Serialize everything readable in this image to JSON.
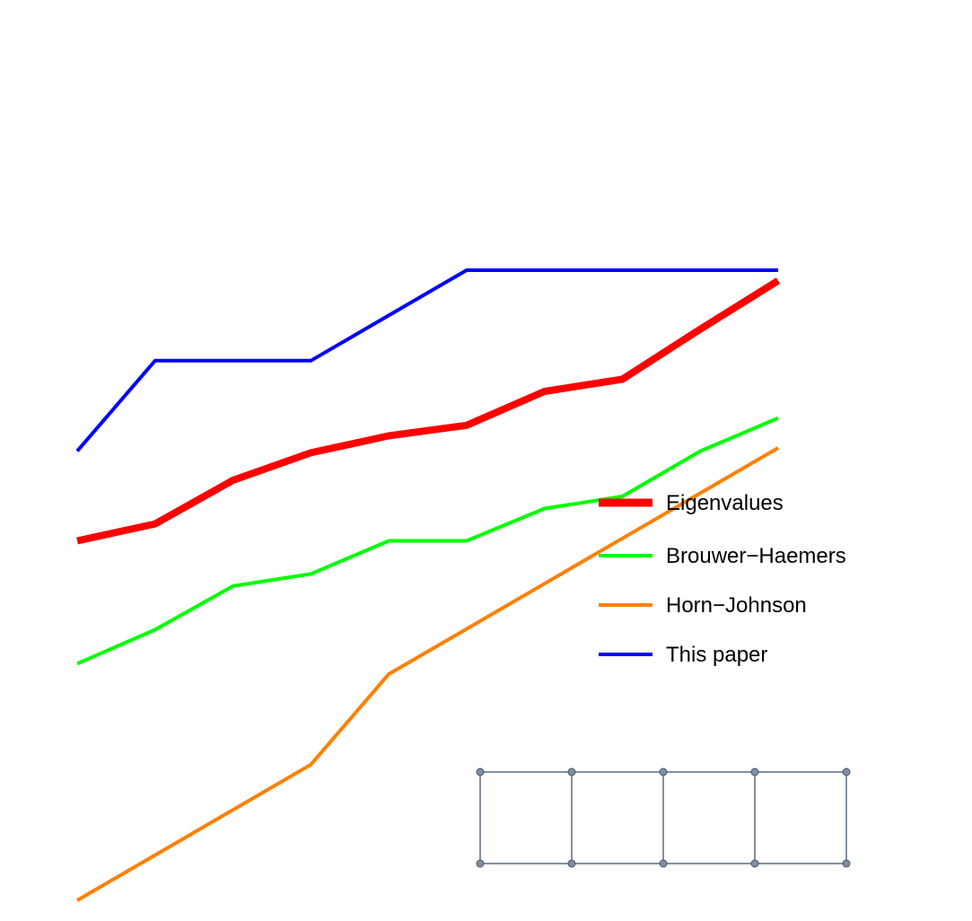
{
  "chart_data": {
    "type": "line",
    "title": "",
    "xlabel": "",
    "ylabel": "",
    "x": [
      1,
      2,
      3,
      4,
      5,
      6,
      7,
      8,
      9,
      10
    ],
    "ylim": [
      0,
      10
    ],
    "grid": false,
    "legend_position": "right",
    "series": [
      {
        "name": "Eigenvalues",
        "color": "#ff0000",
        "values": [
          4.45,
          4.66,
          5.2,
          5.54,
          5.75,
          5.88,
          6.3,
          6.45,
          7.07,
          7.67
        ]
      },
      {
        "name": "Brouwer−Haemers",
        "color": "#00ff00",
        "values": [
          2.93,
          3.35,
          3.89,
          4.04,
          4.45,
          4.45,
          4.85,
          5.0,
          5.56,
          5.97
        ]
      },
      {
        "name": "Horn−Johnson",
        "color": "#ff8000",
        "values": [
          0.0,
          0.56,
          1.12,
          1.68,
          2.8,
          3.36,
          3.92,
          4.48,
          5.04,
          5.6
        ]
      },
      {
        "name": "This paper",
        "color": "#0000ff",
        "values": [
          5.56,
          6.68,
          6.68,
          6.68,
          7.24,
          7.8,
          7.8,
          7.8,
          7.8,
          7.8
        ]
      }
    ],
    "inset": {
      "type": "graph",
      "name": "ladder",
      "node_color": "#7f8ea3",
      "edge_color": "#5a6b80",
      "rungs": 5
    }
  }
}
